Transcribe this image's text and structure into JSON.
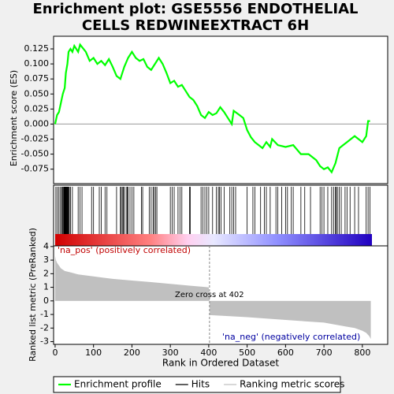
{
  "chart_data": [
    {
      "type": "line",
      "title": "Enrichment plot: GSE5556 ENDOTHELIAL CELLS REDWINEEXTRACT 6H",
      "ylabel": "Enrichment score (ES)",
      "xlim": [
        -4,
        866
      ],
      "ylim": [
        -0.099,
        0.146
      ],
      "yticks": [
        {
          "value": -0.075,
          "label": "-0.075"
        },
        {
          "value": -0.05,
          "label": "-0.050"
        },
        {
          "value": -0.025,
          "label": "-0.025"
        },
        {
          "value": 0,
          "label": "0.000"
        },
        {
          "value": 0.025,
          "label": "0.025"
        },
        {
          "value": 0.05,
          "label": "0.050"
        },
        {
          "value": 0.075,
          "label": "0.075"
        },
        {
          "value": 0.1,
          "label": "0.100"
        },
        {
          "value": 0.125,
          "label": "0.125"
        }
      ],
      "series": [
        {
          "name": "Enrichment profile",
          "color": "#00ff00",
          "x": [
            0,
            5,
            10,
            15,
            20,
            25,
            28,
            32,
            35,
            40,
            45,
            50,
            55,
            60,
            65,
            70,
            80,
            90,
            100,
            110,
            120,
            130,
            140,
            150,
            160,
            170,
            180,
            190,
            200,
            210,
            220,
            230,
            240,
            250,
            260,
            270,
            280,
            290,
            300,
            310,
            320,
            330,
            340,
            350,
            360,
            370,
            380,
            390,
            400,
            410,
            420,
            430,
            440,
            450,
            460,
            465,
            480,
            490,
            500,
            510,
            520,
            530,
            540,
            550,
            560,
            565,
            580,
            600,
            620,
            640,
            660,
            680,
            690,
            700,
            710,
            720,
            730,
            740,
            750,
            760,
            770,
            780,
            790,
            800,
            810,
            815,
            820
          ],
          "values": [
            0.0,
            0.015,
            0.02,
            0.035,
            0.05,
            0.06,
            0.085,
            0.1,
            0.12,
            0.125,
            0.12,
            0.13,
            0.125,
            0.12,
            0.132,
            0.128,
            0.12,
            0.105,
            0.11,
            0.1,
            0.105,
            0.098,
            0.108,
            0.095,
            0.08,
            0.075,
            0.095,
            0.11,
            0.12,
            0.11,
            0.105,
            0.108,
            0.095,
            0.09,
            0.1,
            0.11,
            0.1,
            0.085,
            0.068,
            0.072,
            0.062,
            0.065,
            0.055,
            0.045,
            0.04,
            0.03,
            0.015,
            0.01,
            0.02,
            0.015,
            0.018,
            0.028,
            0.02,
            0.01,
            0.0,
            0.022,
            0.015,
            0.01,
            -0.01,
            -0.022,
            -0.03,
            -0.035,
            -0.04,
            -0.03,
            -0.038,
            -0.025,
            -0.035,
            -0.038,
            -0.035,
            -0.05,
            -0.05,
            -0.06,
            -0.07,
            -0.075,
            -0.072,
            -0.08,
            -0.065,
            -0.04,
            -0.035,
            -0.03,
            -0.025,
            -0.02,
            -0.025,
            -0.03,
            -0.02,
            0.005,
            0.005
          ]
        }
      ]
    },
    {
      "type": "rug",
      "xlim": [
        -4,
        866
      ],
      "series": [
        {
          "name": "Hits",
          "color": "#000000",
          "x": [
            2,
            6,
            10,
            14,
            17,
            19,
            21,
            23,
            24,
            25,
            26,
            27,
            28,
            29,
            30,
            31,
            32,
            33,
            34,
            35,
            37,
            40,
            45,
            60,
            65,
            70,
            95,
            100,
            115,
            120,
            130,
            135,
            160,
            170,
            172,
            175,
            178,
            180,
            185,
            188,
            190,
            195,
            200,
            205,
            225,
            228,
            245,
            250,
            255,
            258,
            262,
            265,
            300,
            305,
            310,
            320,
            325,
            330,
            350,
            352,
            380,
            385,
            390,
            395,
            400,
            410,
            420,
            425,
            428,
            432,
            440,
            455,
            460,
            465,
            470,
            500,
            515,
            520,
            535,
            545,
            550,
            560,
            575,
            580,
            590,
            600,
            605,
            615,
            620,
            640,
            650,
            665,
            690,
            695,
            700,
            710,
            720,
            725,
            730,
            732,
            735,
            740,
            745,
            755,
            760,
            768,
            780,
            790,
            810,
            815,
            820
          ]
        }
      ]
    },
    {
      "type": "area",
      "xlabel": "Rank in Ordered Dataset",
      "ylabel": "Ranked list metric (PreRanked)",
      "pos_label": "'na_pos' (positively correlated)",
      "neg_label": "'na_neg' (negatively correlated)",
      "zero_cross": {
        "value": 402,
        "label": "Zero cross at 402"
      },
      "xlim": [
        -4,
        866
      ],
      "ylim": [
        -3.2,
        4.05
      ],
      "xticks": [
        0,
        100,
        200,
        300,
        400,
        500,
        600,
        700,
        800
      ],
      "yticks": [
        -3,
        -2,
        -1,
        0,
        1,
        2,
        3,
        4
      ],
      "series": [
        {
          "name": "Ranking metric scores",
          "color": "#c0c0c0",
          "x": [
            0,
            2,
            5,
            10,
            15,
            25,
            40,
            60,
            100,
            150,
            200,
            250,
            300,
            350,
            400,
            402,
            403,
            450,
            500,
            550,
            600,
            650,
            700,
            730,
            760,
            780,
            800,
            810,
            818,
            822
          ],
          "values": [
            3.3,
            3.0,
            2.8,
            2.6,
            2.4,
            2.2,
            2.1,
            1.95,
            1.8,
            1.62,
            1.5,
            1.38,
            1.25,
            1.12,
            1.0,
            0.0,
            -1.05,
            -1.12,
            -1.2,
            -1.3,
            -1.4,
            -1.5,
            -1.6,
            -1.75,
            -1.9,
            -2.0,
            -2.2,
            -2.35,
            -2.6,
            -2.8
          ]
        }
      ]
    }
  ]
}
